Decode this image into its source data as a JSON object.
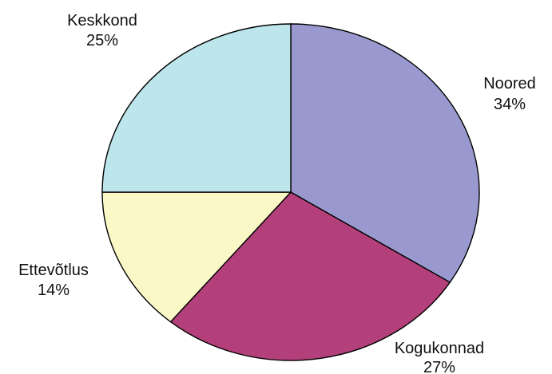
{
  "chart_data": {
    "type": "pie",
    "title": "",
    "slices": [
      {
        "label": "Noored",
        "value": 34,
        "value_label": "34%",
        "color": "#9999d0"
      },
      {
        "label": "Kogukonnad",
        "value": 27,
        "value_label": "27%",
        "color": "#b3407a"
      },
      {
        "label": "Ettevõtlus",
        "value": 14,
        "value_label": "14%",
        "color": "#fbf8c8"
      },
      {
        "label": "Keskkond",
        "value": 25,
        "value_label": "25%",
        "color": "#bde5ec"
      }
    ],
    "start_angle_deg": 0,
    "direction": "clockwise",
    "legend": "none"
  }
}
